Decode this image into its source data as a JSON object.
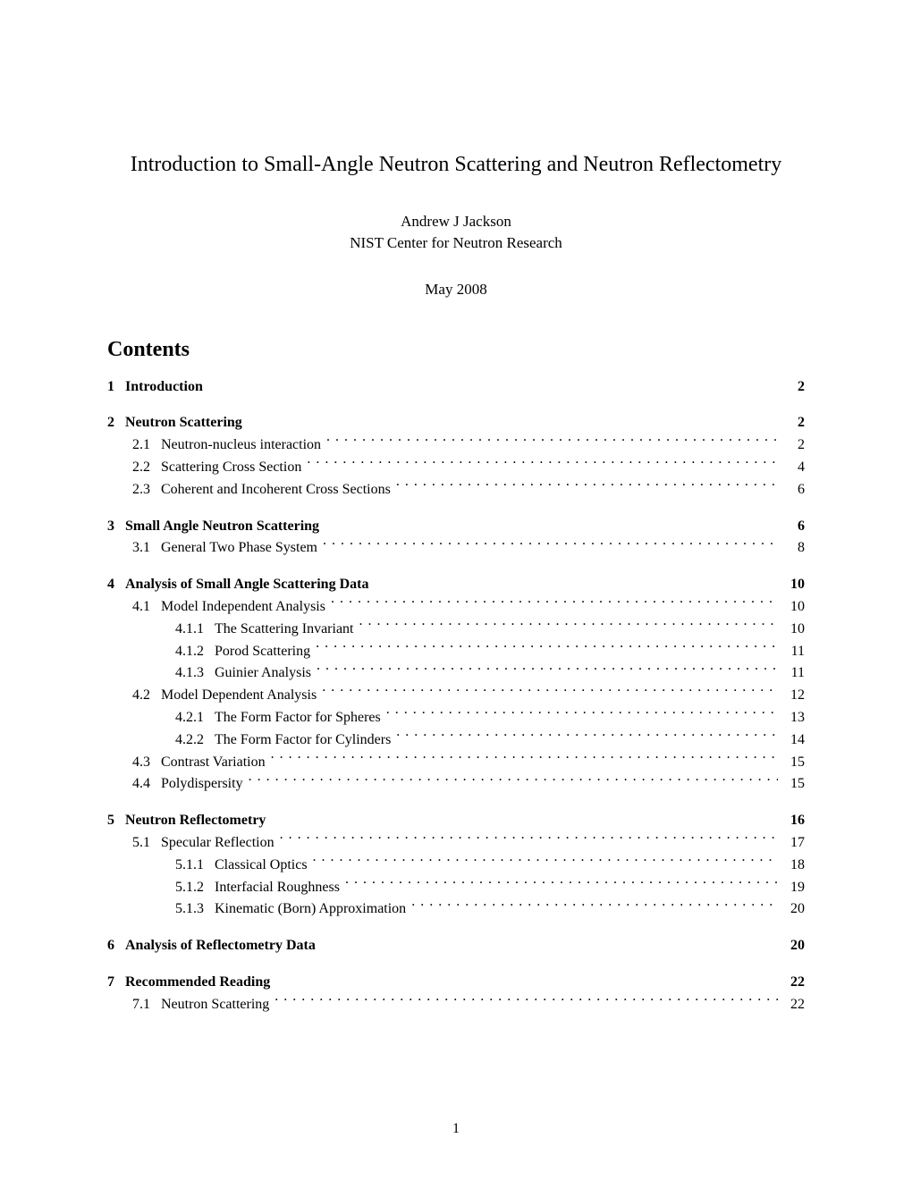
{
  "title": "Introduction to Small-Angle Neutron Scattering and Neutron Reflectometry",
  "author": "Andrew J Jackson",
  "affiliation": "NIST Center for Neutron Research",
  "date": "May 2008",
  "contents_heading": "Contents",
  "page_number": "1",
  "toc": [
    {
      "type": "section",
      "num": "1",
      "label": "Introduction",
      "page": "2",
      "dots": false,
      "bold": true
    },
    {
      "type": "section",
      "num": "2",
      "label": "Neutron Scattering",
      "page": "2",
      "dots": false,
      "bold": true
    },
    {
      "type": "sub",
      "num": "2.1",
      "label": "Neutron-nucleus interaction",
      "page": "2",
      "dots": true
    },
    {
      "type": "sub",
      "num": "2.2",
      "label": "Scattering Cross Section",
      "page": "4",
      "dots": true
    },
    {
      "type": "sub",
      "num": "2.3",
      "label": "Coherent and Incoherent Cross Sections",
      "page": "6",
      "dots": true
    },
    {
      "type": "section",
      "num": "3",
      "label": "Small Angle Neutron Scattering",
      "page": "6",
      "dots": false,
      "bold": true
    },
    {
      "type": "sub",
      "num": "3.1",
      "label": "General Two Phase System",
      "page": "8",
      "dots": true
    },
    {
      "type": "section",
      "num": "4",
      "label": "Analysis of Small Angle Scattering Data",
      "page": "10",
      "dots": false,
      "bold": true
    },
    {
      "type": "sub",
      "num": "4.1",
      "label": "Model Independent Analysis",
      "page": "10",
      "dots": true
    },
    {
      "type": "subsub",
      "num": "4.1.1",
      "label": "The Scattering Invariant",
      "page": "10",
      "dots": true
    },
    {
      "type": "subsub",
      "num": "4.1.2",
      "label": "Porod Scattering",
      "page": "11",
      "dots": true
    },
    {
      "type": "subsub",
      "num": "4.1.3",
      "label": "Guinier Analysis",
      "page": "11",
      "dots": true
    },
    {
      "type": "sub",
      "num": "4.2",
      "label": "Model Dependent Analysis",
      "page": "12",
      "dots": true
    },
    {
      "type": "subsub",
      "num": "4.2.1",
      "label": "The Form Factor for Spheres",
      "page": "13",
      "dots": true
    },
    {
      "type": "subsub",
      "num": "4.2.2",
      "label": "The Form Factor for Cylinders",
      "page": "14",
      "dots": true
    },
    {
      "type": "sub",
      "num": "4.3",
      "label": "Contrast Variation",
      "page": "15",
      "dots": true
    },
    {
      "type": "sub",
      "num": "4.4",
      "label": "Polydispersity",
      "page": "15",
      "dots": true
    },
    {
      "type": "section",
      "num": "5",
      "label": "Neutron Reflectometry",
      "page": "16",
      "dots": false,
      "bold": true
    },
    {
      "type": "sub",
      "num": "5.1",
      "label": "Specular Reflection",
      "page": "17",
      "dots": true
    },
    {
      "type": "subsub",
      "num": "5.1.1",
      "label": "Classical Optics",
      "page": "18",
      "dots": true
    },
    {
      "type": "subsub",
      "num": "5.1.2",
      "label": "Interfacial Roughness",
      "page": "19",
      "dots": true
    },
    {
      "type": "subsub",
      "num": "5.1.3",
      "label": "Kinematic (Born) Approximation",
      "page": "20",
      "dots": true
    },
    {
      "type": "section",
      "num": "6",
      "label": "Analysis of Reflectometry Data",
      "page": "20",
      "dots": false,
      "bold": true
    },
    {
      "type": "section",
      "num": "7",
      "label": "Recommended Reading",
      "page": "22",
      "dots": false,
      "bold": true
    },
    {
      "type": "sub",
      "num": "7.1",
      "label": "Neutron Scattering",
      "page": "22",
      "dots": true
    }
  ]
}
